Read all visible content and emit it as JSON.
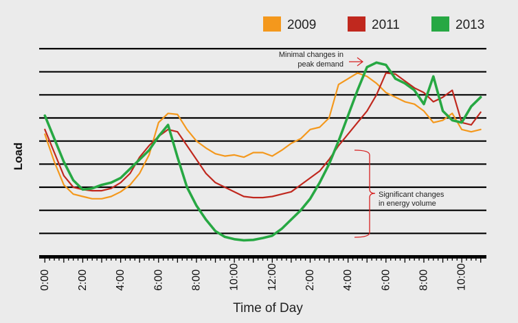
{
  "chart_data": {
    "type": "line",
    "title": "",
    "xlabel": "Time of Day",
    "ylabel": "Load",
    "x_ticks": [
      0,
      2,
      4,
      6,
      8,
      10,
      12,
      14,
      16,
      18,
      20,
      22
    ],
    "x_tick_labels": [
      "0:00",
      "2:00",
      "4:00",
      "6:00",
      "8:00",
      "10:00",
      "12:00",
      "2:00",
      "4:00",
      "6:00",
      "8:00",
      "10:00"
    ],
    "xlim": [
      -0.3,
      23.3
    ],
    "ylim": [
      0,
      9
    ],
    "grid": "horizontal",
    "legend": "top-right",
    "x": [
      0,
      0.5,
      1,
      1.5,
      2,
      2.5,
      3,
      3.5,
      4,
      4.5,
      5,
      5.5,
      6,
      6.5,
      7,
      7.5,
      8,
      8.5,
      9,
      9.5,
      10,
      10.5,
      11,
      11.5,
      12,
      12.5,
      13,
      13.5,
      14,
      14.5,
      15,
      15.5,
      16,
      16.5,
      17,
      17.5,
      18,
      18.5,
      19,
      19.5,
      20,
      20.5,
      21,
      21.5,
      22,
      22.5,
      23
    ],
    "series": [
      {
        "name": "2009",
        "color": "#f4981c",
        "values": [
          5.3,
          4.1,
          3.1,
          2.7,
          2.6,
          2.5,
          2.5,
          2.6,
          2.8,
          3.1,
          3.6,
          4.4,
          5.8,
          6.2,
          6.15,
          5.5,
          5.0,
          4.7,
          4.45,
          4.35,
          4.4,
          4.3,
          4.5,
          4.5,
          4.35,
          4.6,
          4.9,
          5.1,
          5.5,
          5.6,
          6.0,
          7.45,
          7.7,
          7.95,
          7.8,
          7.5,
          7.1,
          6.9,
          6.7,
          6.6,
          6.3,
          5.8,
          5.9,
          6.2,
          5.5,
          5.4,
          5.5
        ]
      },
      {
        "name": "2011",
        "color": "#c0281e",
        "values": [
          5.5,
          4.5,
          3.5,
          3.0,
          2.9,
          2.85,
          2.85,
          2.95,
          3.2,
          3.6,
          4.3,
          4.8,
          5.2,
          5.5,
          5.4,
          4.8,
          4.2,
          3.6,
          3.2,
          3.0,
          2.8,
          2.6,
          2.55,
          2.55,
          2.6,
          2.7,
          2.8,
          3.1,
          3.4,
          3.7,
          4.2,
          4.8,
          5.3,
          5.8,
          6.3,
          7.0,
          7.95,
          7.9,
          7.6,
          7.3,
          7.1,
          6.7,
          6.9,
          7.2,
          5.8,
          5.7,
          6.25
        ]
      },
      {
        "name": "2013",
        "color": "#27a843",
        "values": [
          6.1,
          5.1,
          4.1,
          3.3,
          2.9,
          2.95,
          3.1,
          3.2,
          3.4,
          3.8,
          4.2,
          4.6,
          5.2,
          5.7,
          4.3,
          3.0,
          2.2,
          1.6,
          1.1,
          0.85,
          0.75,
          0.7,
          0.72,
          0.8,
          0.9,
          1.2,
          1.6,
          2.0,
          2.5,
          3.2,
          4.0,
          5.0,
          6.1,
          7.2,
          8.2,
          8.4,
          8.3,
          7.7,
          7.5,
          7.2,
          6.6,
          7.8,
          6.3,
          5.9,
          5.8,
          6.5,
          6.9
        ]
      }
    ],
    "annotations": [
      {
        "text_lines": [
          "Minimal changes in",
          "peak demand"
        ]
      },
      {
        "text_lines": [
          "Significant changes",
          "in energy volume"
        ]
      }
    ]
  }
}
